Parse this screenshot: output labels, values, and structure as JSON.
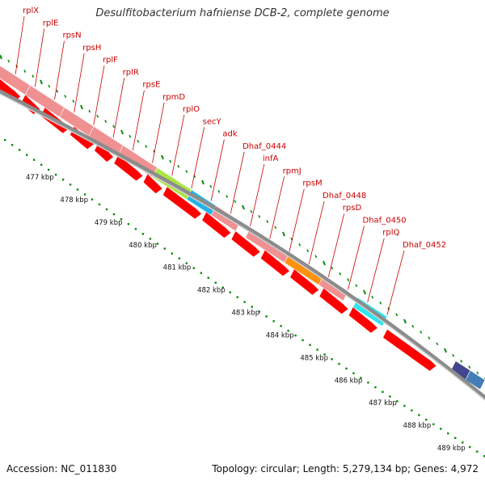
{
  "header": {
    "title": "Desulfitobacterium hafniense DCB-2, complete genome"
  },
  "footer": {
    "accession": "Accession: NC_011830",
    "topology": "Topology: circular; Length: 5,279,134 bp; Genes: 4,972"
  },
  "colors": {
    "gene_arrow": "#ff0000",
    "gene_band": "#f08c8c",
    "highlight_green": "#a6e639",
    "highlight_blue": "#18b0e8",
    "highlight_orange": "#ff8c00",
    "highlight_cyan": "#22e5ee",
    "highlight_navy": "#3a3c8a",
    "highlight_steel": "#3c78b4",
    "tick_green": "#0a8a0a",
    "label_red": "#cc0000",
    "backbone": "#888888"
  },
  "gene_labels": [
    "rplX",
    "rplE",
    "rpsN",
    "rpsH",
    "rplF",
    "rplR",
    "rpsE",
    "rpmD",
    "rplO",
    "secY",
    "adk",
    "Dhaf_0444",
    "infA",
    "rpmJ",
    "rpsM",
    "Dhaf_0448",
    "rpsD",
    "Dhaf_0450",
    "rplQ",
    "Dhaf_0452"
  ],
  "kbp_labels": [
    "477 kbp",
    "478 kbp",
    "479 kbp",
    "480 kbp",
    "481 kbp",
    "482 kbp",
    "483 kbp",
    "484 kbp",
    "485 kbp",
    "486 kbp",
    "487 kbp",
    "488 kbp",
    "489 kbp"
  ]
}
